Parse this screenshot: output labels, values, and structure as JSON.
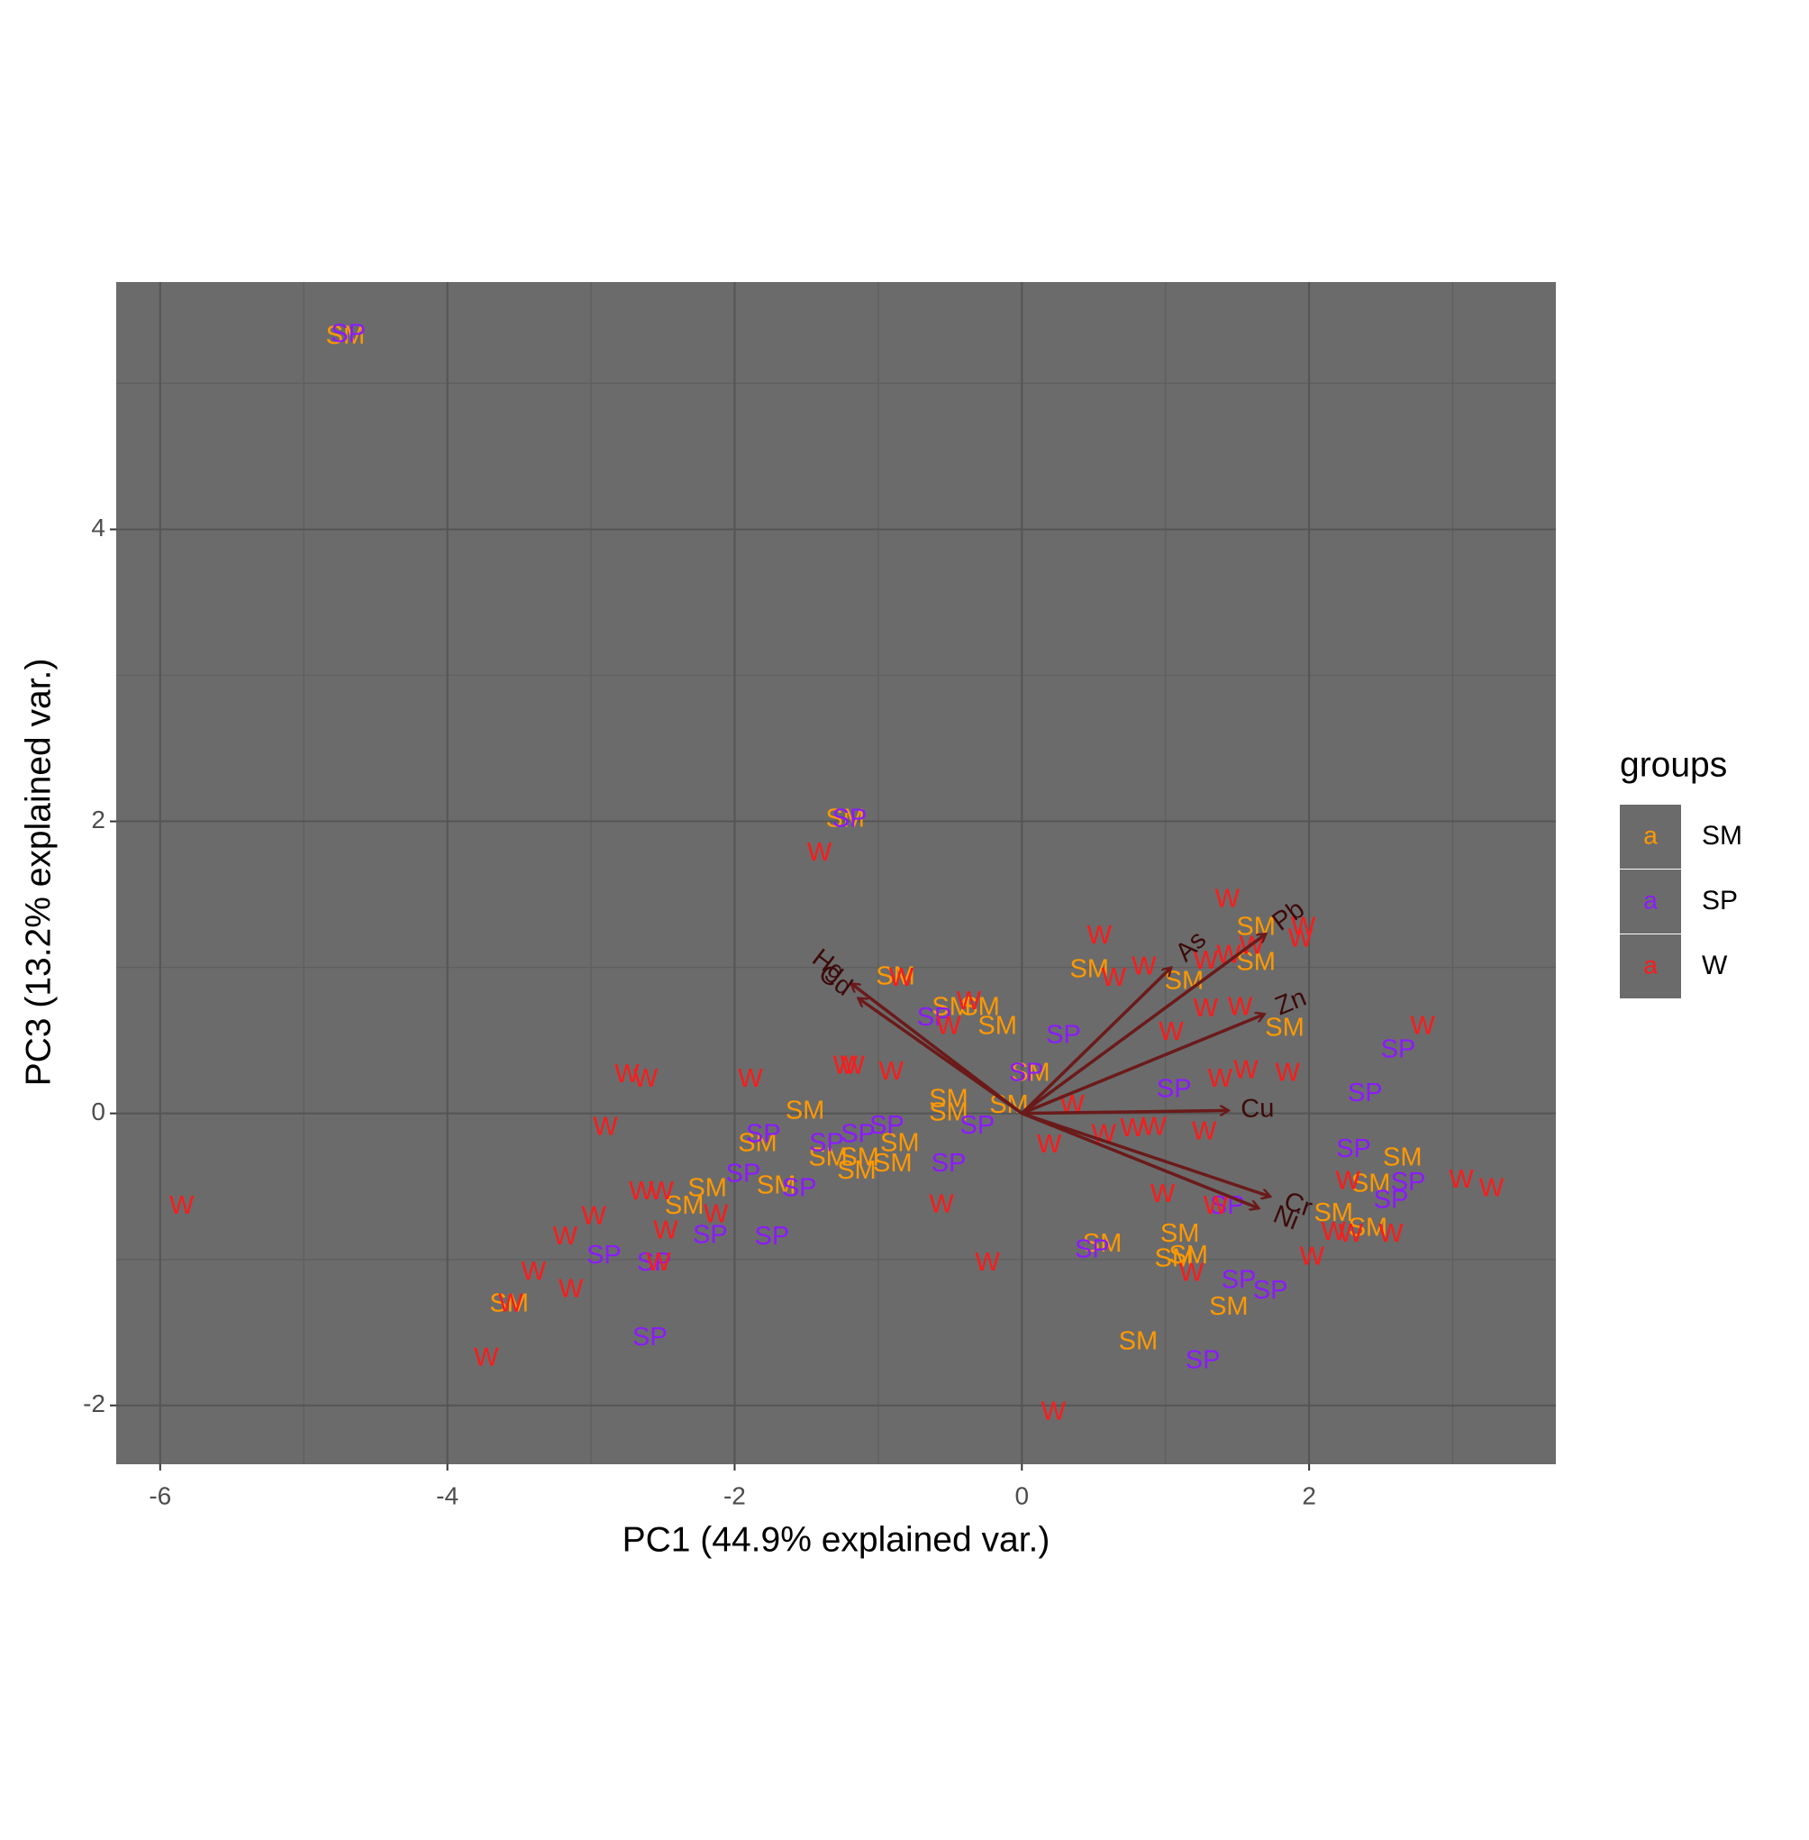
{
  "chart_data": {
    "type": "biplot",
    "x_label": "PC1 (44.9% explained var.)",
    "y_label": "PC3 (13.2% explained var.)",
    "legend_title": "groups",
    "legend_glyph": "a",
    "legend_position": "right",
    "xlim": [
      -6.306,
      3.718
    ],
    "ylim": [
      -2.403,
      5.694
    ],
    "xticks": [
      -6,
      -4,
      -2,
      0,
      2
    ],
    "yticks": [
      -2,
      0,
      2,
      4
    ],
    "minor_xticks": [
      -5,
      -3,
      -1,
      1,
      3
    ],
    "minor_yticks": [
      -1,
      1,
      3,
      5
    ],
    "grid": true,
    "panel_color": "#6b6b6b",
    "arrow_color": "#6b1a1a",
    "label_color": "#3d0a0a",
    "series": [
      {
        "name": "SM",
        "color": "#ff9900",
        "x": [
          -4.71,
          -1.23,
          -0.88,
          -0.49,
          -0.29,
          -0.17,
          0.47,
          1.13,
          1.63,
          1.63,
          1.83,
          0.06,
          -1.51,
          -0.51,
          -0.51,
          -0.09,
          -1.84,
          -0.85,
          -1.35,
          -1.13,
          -0.9,
          -1.15,
          -2.19,
          -1.71,
          -2.35,
          -3.57,
          0.56,
          1.1,
          1.16,
          1.06,
          1.44,
          0.81,
          2.65,
          2.43,
          2.17,
          2.41
        ],
        "values": [
          5.32,
          2.01,
          0.93,
          0.72,
          0.72,
          0.59,
          0.98,
          0.9,
          1.27,
          1.03,
          0.58,
          0.27,
          0.01,
          0.09,
          0.0,
          0.05,
          -0.21,
          -0.21,
          -0.31,
          -0.31,
          -0.35,
          -0.4,
          -0.52,
          -0.5,
          -0.64,
          -1.31,
          -0.9,
          -0.83,
          -0.98,
          -1.0,
          -1.33,
          -1.57,
          -0.31,
          -0.49,
          -0.69,
          -0.79
        ]
      },
      {
        "name": "SP",
        "color": "#8c1aff",
        "x": [
          -4.69,
          -1.2,
          -0.61,
          0.29,
          0.03,
          1.06,
          2.39,
          2.62,
          -0.31,
          -0.94,
          -1.14,
          -1.36,
          -1.8,
          -0.51,
          -1.94,
          -1.55,
          2.31,
          2.69,
          2.57,
          1.43,
          -2.17,
          -1.74,
          -2.91,
          -2.56,
          0.49,
          1.51,
          1.73,
          -2.59,
          1.26
        ],
        "values": [
          5.33,
          2.01,
          0.65,
          0.53,
          0.27,
          0.16,
          0.13,
          0.43,
          -0.09,
          -0.09,
          -0.15,
          -0.21,
          -0.15,
          -0.35,
          -0.42,
          -0.52,
          -0.25,
          -0.48,
          -0.6,
          -0.64,
          -0.84,
          -0.85,
          -0.98,
          -1.03,
          -0.94,
          -1.15,
          -1.22,
          -1.54,
          -1.7
        ]
      },
      {
        "name": "W",
        "color": "#ff1a1a",
        "x": [
          -5.85,
          -3.73,
          -3.56,
          -3.4,
          -3.18,
          -3.14,
          -2.98,
          -2.9,
          -2.75,
          -2.62,
          -2.65,
          -2.51,
          -2.48,
          -2.53,
          -2.13,
          -1.89,
          -1.41,
          -1.23,
          -1.18,
          -0.91,
          -0.84,
          -0.51,
          -0.37,
          -0.56,
          -0.24,
          0.19,
          0.35,
          0.22,
          0.54,
          0.64,
          0.85,
          0.57,
          0.77,
          0.92,
          0.98,
          1.04,
          1.18,
          1.27,
          1.28,
          1.38,
          1.43,
          1.28,
          1.52,
          1.56,
          1.44,
          1.6,
          1.85,
          1.96,
          1.94,
          2.02,
          2.27,
          2.17,
          2.29,
          2.57,
          2.79,
          3.06,
          3.27,
          1.35
        ],
        "values": [
          -0.64,
          -1.68,
          -1.31,
          -1.09,
          -0.85,
          -1.21,
          -0.71,
          -0.1,
          0.26,
          0.23,
          -0.54,
          -0.54,
          -0.81,
          -1.03,
          -0.7,
          0.23,
          1.78,
          0.32,
          0.32,
          0.28,
          0.92,
          0.59,
          0.76,
          -0.63,
          -1.03,
          -0.22,
          0.05,
          -2.05,
          1.21,
          0.92,
          1.0,
          -0.15,
          -0.11,
          -0.1,
          -0.56,
          0.55,
          -1.1,
          -0.13,
          0.71,
          0.23,
          1.46,
          1.04,
          0.72,
          0.29,
          1.08,
          1.14,
          0.27,
          1.27,
          1.19,
          -0.99,
          -0.47,
          -0.82,
          -0.83,
          -0.83,
          0.59,
          -0.46,
          -0.52,
          -0.64
        ]
      }
    ],
    "arrows": [
      {
        "name": "Hg",
        "x": -1.19,
        "y": 0.89
      },
      {
        "name": "Cd",
        "x": -1.14,
        "y": 0.79
      },
      {
        "name": "As",
        "x": 1.04,
        "y": 1.0
      },
      {
        "name": "Pb",
        "x": 1.7,
        "y": 1.23
      },
      {
        "name": "Zn",
        "x": 1.69,
        "y": 0.68
      },
      {
        "name": "Cu",
        "x": 1.44,
        "y": 0.02
      },
      {
        "name": "Cr",
        "x": 1.73,
        "y": -0.57
      },
      {
        "name": "Ni",
        "x": 1.65,
        "y": -0.65
      }
    ]
  }
}
